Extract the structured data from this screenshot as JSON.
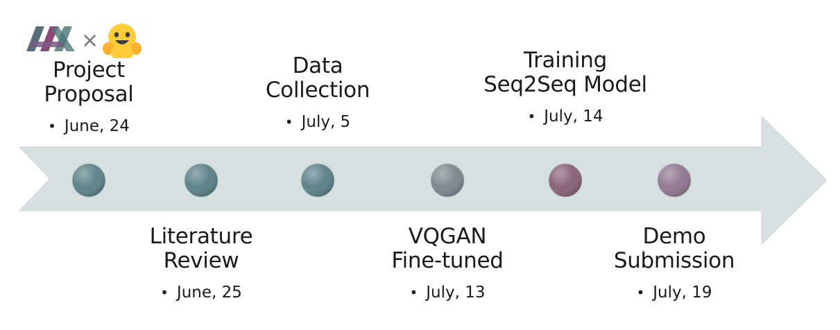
{
  "colors": {
    "arrow_fill": "#d7e0e0",
    "arrow_edge": "#cdd6d6",
    "dot_teal": "#5f838a",
    "dot_mauve": "#8a6479",
    "dot_mauve_light": "#927a92",
    "dot_mix": "#7e8990"
  },
  "logo": {
    "left_icon": "jax-logo-icon",
    "separator": "×",
    "right_icon": "hugging-face-logo-icon"
  },
  "milestones": [
    {
      "title": "Project\nProposal",
      "date": "June, 24",
      "position": "above",
      "dot_color": "#5f838a"
    },
    {
      "title": "Literature\nReview",
      "date": "June, 25",
      "position": "below",
      "dot_color": "#5f838a"
    },
    {
      "title": "Data\nCollection",
      "date": "July, 5",
      "position": "above",
      "dot_color": "#5f838a"
    },
    {
      "title": "VQGAN\nFine-tuned",
      "date": "July, 13",
      "position": "below",
      "dot_color": "#7e8990"
    },
    {
      "title": "Training\nSeq2Seq  Model",
      "date": "July, 14",
      "position": "above",
      "dot_color": "#8a6479"
    },
    {
      "title": "Demo\nSubmission",
      "date": "July, 19",
      "position": "below",
      "dot_color": "#927a92"
    }
  ]
}
